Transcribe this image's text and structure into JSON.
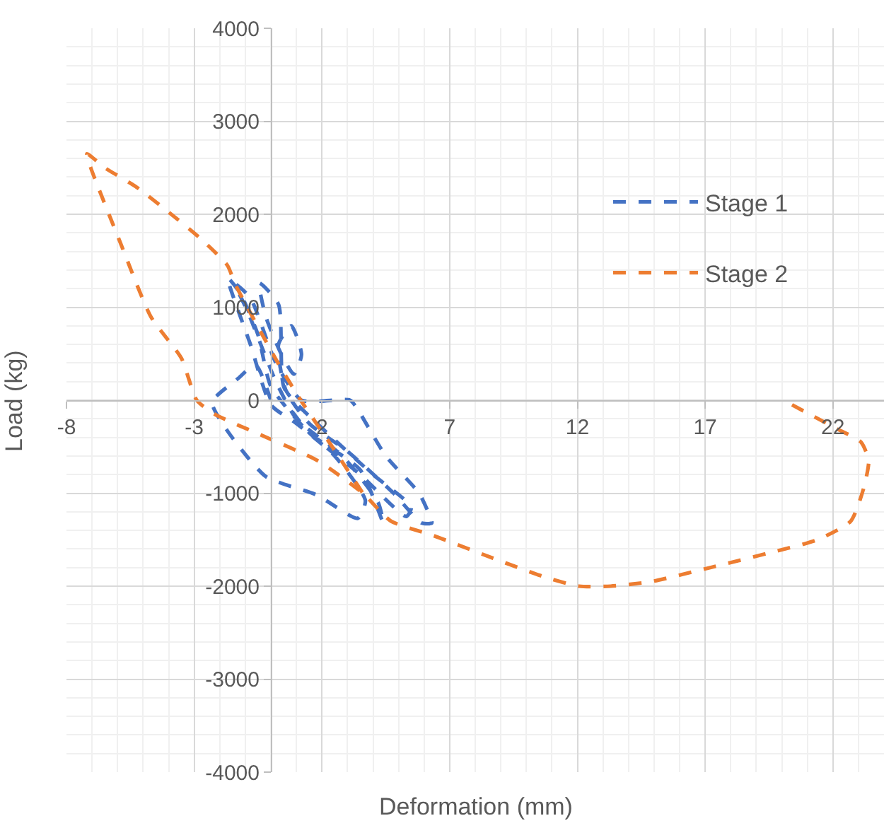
{
  "chart_data": {
    "type": "line",
    "xlabel": "Deformation (mm)",
    "ylabel": "Load (kg)",
    "xlim": [
      -8,
      24
    ],
    "xticks": [
      -8,
      -3,
      2,
      7,
      12,
      17,
      22
    ],
    "ylim": [
      -4000,
      4000
    ],
    "yticks": [
      -4000,
      -3000,
      -2000,
      -1000,
      0,
      1000,
      2000,
      3000,
      4000
    ],
    "grid": true,
    "legend": "top right",
    "marker": "none",
    "line_style": "dashed",
    "series": [
      {
        "name": "Stage 1",
        "color": "#4472c4",
        "x": [
          0,
          -0.6,
          -1.3,
          -2.3,
          -1.7,
          -0.2,
          1.8,
          3.4,
          3.7,
          2.5,
          1,
          0,
          -0.8,
          -1.7,
          -1.2,
          -0.5,
          0,
          1.5,
          3.5,
          4.4,
          4.2,
          2.8,
          1,
          0.2,
          -0.9,
          -1.4,
          -0.8,
          0.2,
          1.2,
          3.1,
          3.4,
          4.5,
          5.8,
          6.2,
          6.3,
          5.9,
          4.8,
          3,
          1.5,
          0.5,
          0.3,
          -0.45,
          -0.2,
          0.4,
          0.9,
          1.2,
          0.8,
          0.3,
          0.6,
          2,
          4,
          5.5,
          5.3,
          3.5,
          1.5,
          0.5
        ],
        "values": [
          0,
          380,
          230,
          -20,
          -330,
          -820,
          -1020,
          -1270,
          -1080,
          -600,
          -250,
          -50,
          600,
          1320,
          1150,
          700,
          150,
          -350,
          -750,
          -1320,
          -1100,
          -600,
          -200,
          200,
          950,
          1250,
          1100,
          400,
          0,
          0,
          -100,
          -600,
          -1000,
          -1230,
          -1320,
          -1320,
          -1000,
          -550,
          -250,
          150,
          1030,
          1260,
          900,
          500,
          280,
          490,
          800,
          600,
          100,
          -300,
          -800,
          -1150,
          -1250,
          -800,
          -350,
          0
        ]
      },
      {
        "name": "Stage 2",
        "color": "#ed7d31",
        "x": [
          20.4,
          22.1,
          23.1,
          23.4,
          23.2,
          22.7,
          21.4,
          19.4,
          17.2,
          14.9,
          13.3,
          12.06,
          10.7,
          8.7,
          6.3,
          4.7,
          3.6,
          1.83,
          -0.17,
          -2.2,
          -2.9,
          -3.5,
          -4.7,
          -5.9,
          -7.05,
          -7.2,
          -6.5,
          -5.3,
          -3.9,
          -2.8,
          -1.7,
          -1.4,
          0.28,
          1.17,
          2.4,
          3.6
        ],
        "values": [
          -50,
          -300,
          -450,
          -650,
          -950,
          -1300,
          -1500,
          -1650,
          -1800,
          -1950,
          -2000,
          -2000,
          -1900,
          -1700,
          -1450,
          -1300,
          -1000,
          -650,
          -400,
          -150,
          0,
          450,
          900,
          1700,
          2500,
          2650,
          2500,
          2300,
          2000,
          1750,
          1450,
          1250,
          400,
          0,
          -500,
          -1000
        ]
      }
    ]
  }
}
